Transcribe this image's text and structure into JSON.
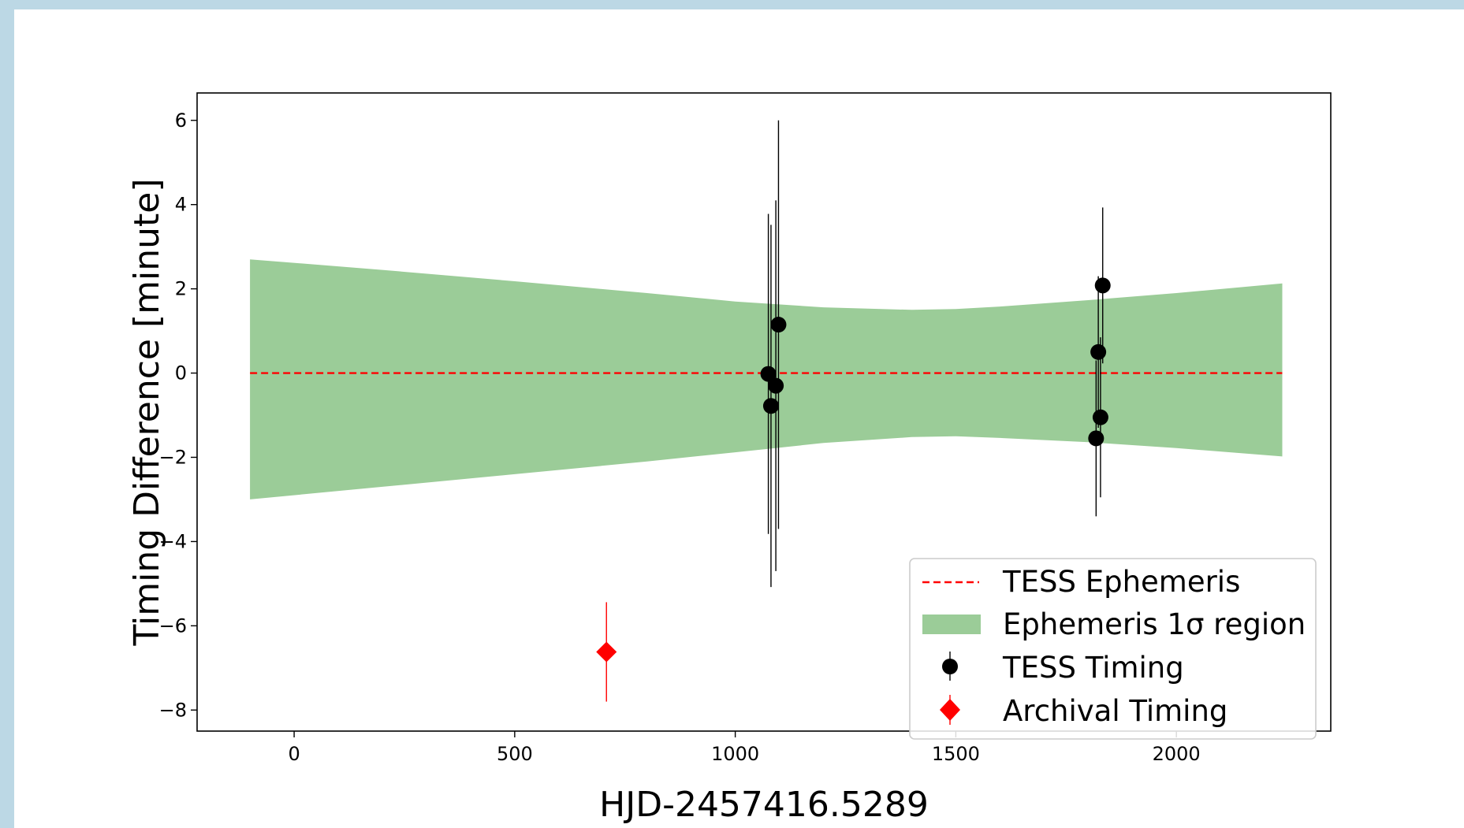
{
  "chart_data": {
    "type": "scatter",
    "title": "",
    "xlabel": "HJD-2457416.5289",
    "ylabel": "Timing Difference [minute]",
    "xlim": [
      -220,
      2350
    ],
    "ylim": [
      -8.5,
      6.65
    ],
    "xticks": [
      0,
      500,
      1000,
      1500,
      2000
    ],
    "xtick_labels": [
      "0",
      "500",
      "1000",
      "1500",
      "2000"
    ],
    "yticks": [
      6,
      4,
      2,
      0,
      -2,
      -4,
      -6,
      -8
    ],
    "ytick_labels": [
      "6",
      "4",
      "2",
      "0",
      "−2",
      "−4",
      "−6",
      "−8"
    ],
    "grid": false,
    "legend_position": "lower-right",
    "ephemeris_line": {
      "name": "TESS Ephemeris",
      "x": [
        -100,
        2240
      ],
      "y": [
        0,
        0
      ],
      "color": "#ff0000",
      "style": "dashed"
    },
    "uncertainty_band": {
      "name": "Ephemeris 1σ region",
      "color": "#9bcc98",
      "x": [
        -100,
        200,
        500,
        800,
        1000,
        1200,
        1400,
        1500,
        1600,
        1800,
        2000,
        2240
      ],
      "upper": [
        2.7,
        2.45,
        2.18,
        1.9,
        1.7,
        1.56,
        1.5,
        1.52,
        1.58,
        1.73,
        1.9,
        2.13
      ],
      "lower": [
        -3.0,
        -2.7,
        -2.4,
        -2.1,
        -1.88,
        -1.66,
        -1.52,
        -1.5,
        -1.54,
        -1.64,
        -1.78,
        -1.98
      ]
    },
    "series": [
      {
        "name": "TESS Timing",
        "color": "#000000",
        "marker": "circle",
        "points": [
          {
            "x": 1075,
            "y": -0.02,
            "err_low": 3.8,
            "err_high": 3.8
          },
          {
            "x": 1081,
            "y": -0.78,
            "err_low": 4.3,
            "err_high": 4.3
          },
          {
            "x": 1092,
            "y": -0.3,
            "err_low": 4.4,
            "err_high": 4.4
          },
          {
            "x": 1098,
            "y": 1.15,
            "err_low": 4.85,
            "err_high": 4.85
          },
          {
            "x": 1818,
            "y": -1.55,
            "err_low": 1.85,
            "err_high": 1.85
          },
          {
            "x": 1823,
            "y": 0.5,
            "err_low": 1.8,
            "err_high": 1.8
          },
          {
            "x": 1828,
            "y": -1.05,
            "err_low": 1.9,
            "err_high": 1.9
          },
          {
            "x": 1833,
            "y": 2.08,
            "err_low": 1.85,
            "err_high": 1.85
          }
        ]
      },
      {
        "name": "Archival Timing",
        "color": "#ff0000",
        "marker": "diamond",
        "points": [
          {
            "x": 708,
            "y": -6.62,
            "err_low": 1.18,
            "err_high": 1.18
          }
        ]
      }
    ]
  }
}
